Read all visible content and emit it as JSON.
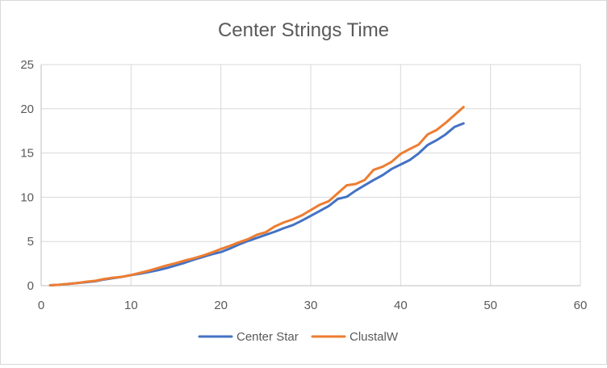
{
  "chart_data": {
    "type": "line",
    "title": "Center Strings Time",
    "xlabel": "",
    "ylabel": "",
    "xlim": [
      0,
      60
    ],
    "ylim": [
      0,
      25
    ],
    "x_ticks": [
      "0",
      "10",
      "20",
      "30",
      "40",
      "50",
      "60"
    ],
    "y_ticks": [
      "0",
      "5",
      "10",
      "15",
      "20",
      "25"
    ],
    "grid": true,
    "legend_position": "bottom",
    "series": [
      {
        "name": "Center Star",
        "color": "#4472C4",
        "x": [
          1,
          2,
          3,
          4,
          5,
          6,
          7,
          8,
          9,
          10,
          11,
          12,
          13,
          14,
          15,
          16,
          17,
          18,
          19,
          20,
          21,
          22,
          23,
          24,
          25,
          26,
          27,
          28,
          29,
          30,
          31,
          32,
          33,
          34,
          35,
          36,
          37,
          38,
          39,
          40,
          41,
          42,
          43,
          44,
          45,
          46,
          47
        ],
        "y": [
          0.05,
          0.1,
          0.2,
          0.3,
          0.4,
          0.5,
          0.7,
          0.85,
          1.0,
          1.2,
          1.35,
          1.55,
          1.75,
          2.0,
          2.3,
          2.6,
          2.95,
          3.25,
          3.55,
          3.8,
          4.2,
          4.65,
          5.05,
          5.4,
          5.75,
          6.1,
          6.5,
          6.85,
          7.35,
          7.9,
          8.45,
          9.0,
          9.8,
          10.05,
          10.75,
          11.35,
          11.95,
          12.5,
          13.2,
          13.7,
          14.2,
          14.95,
          15.9,
          16.45,
          17.1,
          17.95,
          18.35
        ]
      },
      {
        "name": "ClustalW",
        "color": "#ED7D31",
        "x": [
          1,
          2,
          3,
          4,
          5,
          6,
          7,
          8,
          9,
          10,
          11,
          12,
          13,
          14,
          15,
          16,
          17,
          18,
          19,
          20,
          21,
          22,
          23,
          24,
          25,
          26,
          27,
          28,
          29,
          30,
          31,
          32,
          33,
          34,
          35,
          36,
          37,
          38,
          39,
          40,
          41,
          42,
          43,
          44,
          45,
          46,
          47
        ],
        "y": [
          0.05,
          0.1,
          0.2,
          0.3,
          0.45,
          0.55,
          0.75,
          0.9,
          1.0,
          1.2,
          1.45,
          1.7,
          2.0,
          2.3,
          2.55,
          2.85,
          3.1,
          3.4,
          3.75,
          4.15,
          4.5,
          4.9,
          5.25,
          5.75,
          6.05,
          6.7,
          7.15,
          7.5,
          7.95,
          8.55,
          9.15,
          9.55,
          10.45,
          11.35,
          11.5,
          11.95,
          13.1,
          13.45,
          14.0,
          14.9,
          15.45,
          15.95,
          17.1,
          17.6,
          18.4,
          19.3,
          20.2
        ]
      }
    ]
  }
}
